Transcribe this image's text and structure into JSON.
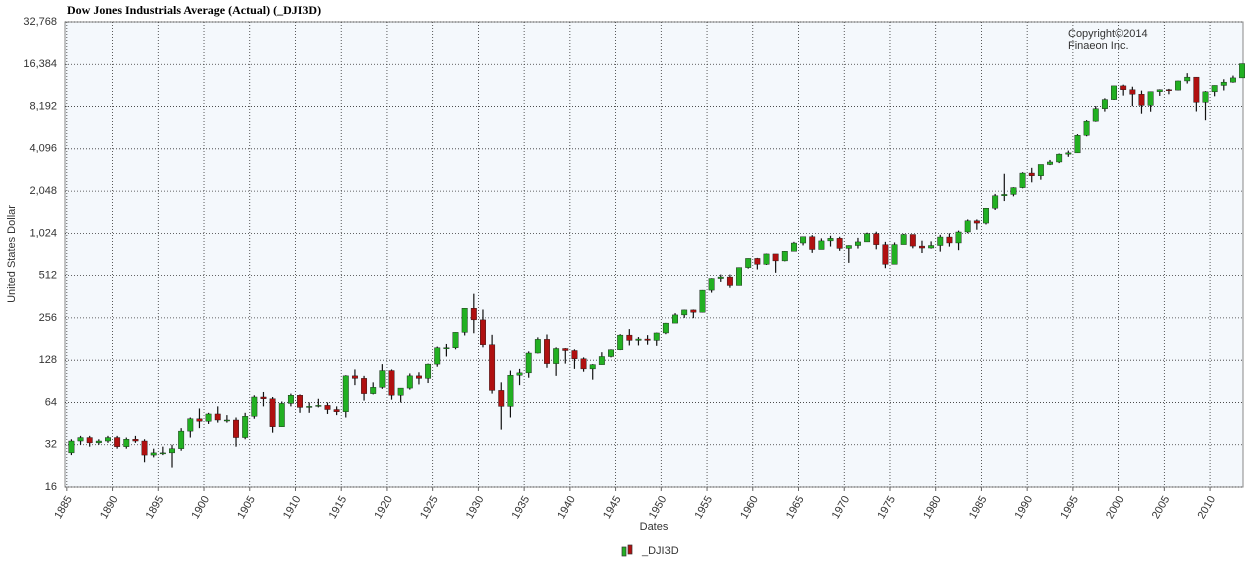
{
  "chart_data": {
    "type": "candlestick",
    "title": "Dow Jones Industrials Average (Actual) (_DJI3D)",
    "annotations": [
      "Copyright©2014",
      "Finaeon Inc."
    ],
    "x_label": "Dates",
    "y_label": "United States Dollar",
    "log_scale": true,
    "grid": true,
    "legend": "bottom",
    "xlim": [
      1884.8,
      2013.6
    ],
    "xticks": [
      1885,
      1890,
      1895,
      1900,
      1905,
      1910,
      1915,
      1920,
      1925,
      1930,
      1935,
      1940,
      1945,
      1950,
      1955,
      1960,
      1965,
      1970,
      1975,
      1980,
      1985,
      1990,
      1995,
      2000,
      2005,
      2010
    ],
    "ylim": [
      16,
      32768
    ],
    "yticks": [
      16,
      32,
      64,
      128,
      256,
      512,
      {
        "value": 1024,
        "label": "1,024"
      },
      {
        "value": 2048,
        "label": "2,048"
      },
      {
        "value": 4096,
        "label": "4,096"
      },
      {
        "value": 8192,
        "label": "8,192"
      },
      {
        "value": 16384,
        "label": "16,384"
      },
      {
        "value": 32768,
        "label": "32,768"
      }
    ],
    "x": [
      1885,
      1886,
      1887,
      1888,
      1889,
      1890,
      1891,
      1892,
      1893,
      1894,
      1895,
      1896,
      1897,
      1898,
      1899,
      1900,
      1901,
      1902,
      1903,
      1904,
      1905,
      1906,
      1907,
      1908,
      1909,
      1910,
      1911,
      1912,
      1913,
      1914,
      1915,
      1916,
      1917,
      1918,
      1919,
      1920,
      1921,
      1922,
      1923,
      1924,
      1925,
      1926,
      1927,
      1928,
      1929,
      1930,
      1931,
      1932,
      1933,
      1934,
      1935,
      1936,
      1937,
      1938,
      1939,
      1940,
      1941,
      1942,
      1943,
      1944,
      1945,
      1946,
      1947,
      1948,
      1949,
      1950,
      1951,
      1952,
      1953,
      1954,
      1955,
      1956,
      1957,
      1958,
      1959,
      1960,
      1961,
      1962,
      1963,
      1964,
      1965,
      1966,
      1967,
      1968,
      1969,
      1970,
      1971,
      1972,
      1973,
      1974,
      1975,
      1976,
      1977,
      1978,
      1979,
      1980,
      1981,
      1982,
      1983,
      1984,
      1985,
      1986,
      1987,
      1988,
      1989,
      1990,
      1991,
      1992,
      1993,
      1994,
      1995,
      1996,
      1997,
      1998,
      1999,
      2000,
      2001,
      2002,
      2003,
      2004,
      2005,
      2006,
      2007,
      2008,
      2009,
      2010,
      2011,
      2012,
      2013
    ],
    "series": [
      {
        "name": "_DJI3D",
        "up_color": "#22b022",
        "down_color": "#b01010",
        "open": [
          28,
          34,
          36,
          33,
          34,
          36,
          31,
          35,
          34,
          27,
          28,
          28,
          30,
          40,
          49,
          47,
          53,
          48,
          48,
          36,
          51,
          70,
          68,
          43,
          63,
          72,
          59,
          60,
          61,
          57,
          55,
          99,
          95,
          74,
          82,
          108,
          72,
          81,
          99,
          95,
          120,
          157,
          157,
          202,
          300,
          248,
          165,
          78,
          60,
          100,
          104,
          144,
          180,
          121,
          155,
          150,
          131,
          111,
          119,
          136,
          152,
          193,
          177,
          181,
          177,
          200,
          235,
          269,
          292,
          281,
          404,
          488,
          500,
          436,
          584,
          679,
          616,
          731,
          652,
          763,
          874,
          969,
          786,
          905,
          944,
          800,
          839,
          890,
          1020,
          851,
          616,
          852,
          1005,
          831,
          805,
          839,
          964,
          875,
          1047,
          1259,
          1212,
          1547,
          1896,
          1939,
          2169,
          2753,
          2634,
          3169,
          3301,
          3754,
          3834,
          5117,
          6448,
          7908,
          9181,
          11497,
          10787,
          10021,
          8342,
          10454,
          10783,
          10718,
          12463,
          13265,
          8776,
          10428,
          11578,
          12218,
          13104
        ],
        "high": [
          35,
          37,
          37,
          35,
          37,
          37,
          36,
          37,
          35,
          30,
          31,
          32,
          42,
          50,
          58,
          54,
          60,
          52,
          50,
          54,
          72,
          76,
          70,
          65,
          74,
          73,
          64,
          68,
          64,
          60,
          100,
          110,
          99,
          89,
          120,
          110,
          81,
          103,
          105,
          121,
          160,
          167,
          202,
          300,
          381,
          294,
          194,
          89,
          108,
          111,
          148,
          186,
          195,
          158,
          156,
          153,
          134,
          120,
          146,
          153,
          196,
          213,
          187,
          193,
          201,
          236,
          277,
          293,
          294,
          405,
          490,
          521,
          521,
          584,
          679,
          685,
          735,
          726,
          767,
          891,
          969,
          995,
          943,
          985,
          968,
          842,
          951,
          1036,
          1052,
          891,
          882,
          1015,
          1000,
          908,
          898,
          1000,
          1024,
          1071,
          1287,
          1287,
          1553,
          1956,
          2722,
          2183,
          2791,
          2999,
          3168,
          3413,
          3794,
          3978,
          5216,
          6560,
          8259,
          9374,
          11497,
          11723,
          11337,
          10635,
          10454,
          10854,
          10941,
          12510,
          14165,
          13279,
          10549,
          11585,
          12811,
          13610,
          16577
        ],
        "low": [
          27,
          32,
          31,
          32,
          33,
          30,
          30,
          33,
          24,
          26,
          27,
          22,
          29,
          36,
          42,
          45,
          46,
          46,
          31,
          35,
          49,
          60,
          39,
          43,
          60,
          54,
          54,
          59,
          53,
          52,
          50,
          85,
          66,
          73,
          80,
          67,
          64,
          79,
          86,
          88,
          115,
          136,
          153,
          192,
          199,
          158,
          74,
          41,
          50,
          85,
          96,
          143,
          113,
          99,
          121,
          111,
          106,
          93,
          119,
          134,
          151,
          163,
          163,
          165,
          162,
          196,
          238,
          256,
          255,
          280,
          388,
          462,
          420,
          436,
          574,
          566,
          610,
          536,
          647,
          766,
          840,
          744,
          786,
          825,
          769,
          631,
          798,
          889,
          788,
          578,
          632,
          859,
          801,
          742,
          797,
          759,
          824,
          777,
          1027,
          1087,
          1185,
          1502,
          1739,
          1879,
          2144,
          2365,
          2470,
          3136,
          3242,
          3593,
          3832,
          5032,
          6391,
          7539,
          9120,
          9796,
          8236,
          7286,
          7524,
          9750,
          10012,
          10667,
          11940,
          7552,
          6547,
          9686,
          10655,
          12101,
          13104
        ],
        "close": [
          34,
          36,
          33,
          34,
          36,
          31,
          35,
          34,
          27,
          28,
          28,
          30,
          40,
          49,
          47,
          53,
          48,
          48,
          36,
          51,
          70,
          68,
          43,
          63,
          72,
          59,
          60,
          61,
          57,
          55,
          99,
          95,
          74,
          82,
          108,
          72,
          81,
          99,
          95,
          120,
          157,
          157,
          202,
          300,
          248,
          165,
          78,
          60,
          100,
          104,
          144,
          180,
          121,
          155,
          150,
          131,
          111,
          119,
          136,
          152,
          193,
          177,
          181,
          177,
          200,
          235,
          269,
          292,
          281,
          404,
          488,
          500,
          436,
          584,
          679,
          616,
          731,
          652,
          763,
          874,
          969,
          786,
          905,
          944,
          800,
          839,
          890,
          1020,
          851,
          616,
          852,
          1005,
          831,
          805,
          839,
          964,
          875,
          1047,
          1259,
          1212,
          1547,
          1896,
          1939,
          2169,
          2753,
          2634,
          3169,
          3301,
          3754,
          3834,
          5117,
          6448,
          7908,
          9181,
          11497,
          10787,
          10021,
          8342,
          10454,
          10783,
          10718,
          12463,
          13265,
          8776,
          10428,
          11578,
          12218,
          13104,
          16577
        ]
      }
    ]
  }
}
